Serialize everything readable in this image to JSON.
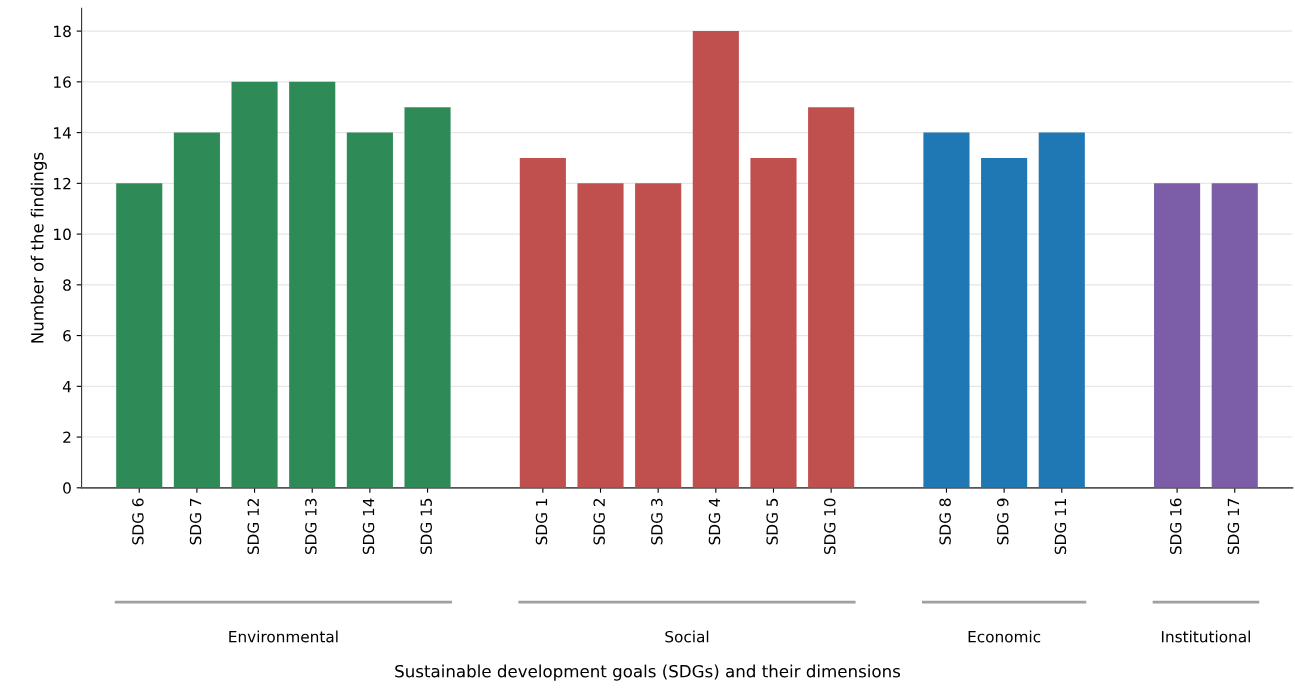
{
  "chart_data": {
    "type": "bar",
    "ylabel": "Number of the findings",
    "categories": [
      "SDG 6",
      "SDG 7",
      "SDG 12",
      "SDG 13",
      "SDG 14",
      "SDG 15",
      null,
      "SDG 1",
      "SDG 2",
      "SDG 3",
      "SDG 4",
      "SDG 5",
      "SDG 10",
      null,
      "SDG 8",
      "SDG 9",
      "SDG 11",
      null,
      "SDG 16",
      "SDG 17"
    ],
    "series": [
      {
        "color": "#2e8b57",
        "values": [
          12,
          14,
          16,
          16,
          14,
          15,
          null,
          null,
          null,
          null,
          null,
          null,
          null,
          null,
          null,
          null,
          null,
          null,
          null,
          null
        ]
      },
      {
        "color": "#c0504d",
        "values": [
          null,
          null,
          null,
          null,
          null,
          null,
          null,
          13,
          12,
          12,
          18,
          13,
          15,
          null,
          null,
          null,
          null,
          null,
          null,
          null
        ]
      },
      {
        "color": "#1f77b4",
        "values": [
          null,
          null,
          null,
          null,
          null,
          null,
          null,
          null,
          null,
          null,
          null,
          null,
          null,
          null,
          14,
          13,
          14,
          null,
          null,
          null
        ]
      },
      {
        "color": "#7b5ea7",
        "values": [
          null,
          null,
          null,
          null,
          null,
          null,
          null,
          null,
          null,
          null,
          null,
          null,
          null,
          null,
          null,
          null,
          null,
          null,
          12,
          12
        ]
      }
    ],
    "annotations": [
      "Environmental",
      "Social",
      "Economic",
      "Institutional",
      "Sustainable development goals (SDGs) and their dimensions"
    ],
    "ylim": [
      0,
      18.9
    ],
    "yticks": [
      0,
      2,
      4,
      6,
      8,
      10,
      12,
      14,
      16,
      18
    ],
    "grid": "y"
  }
}
